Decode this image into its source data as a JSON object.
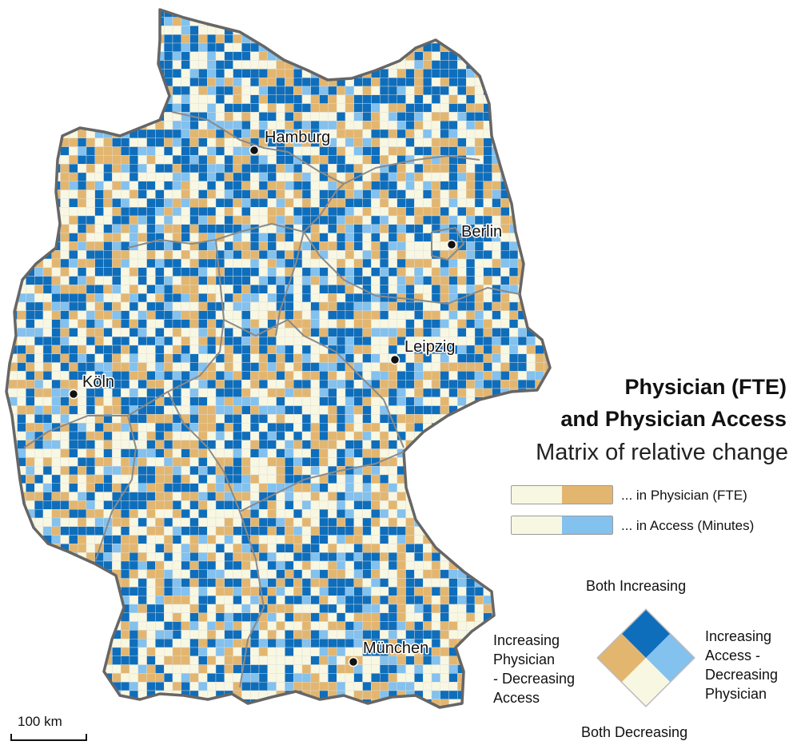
{
  "colors": {
    "both_decreasing": "#f8f7e2",
    "increasing_physician": "#e3b670",
    "increasing_access": "#83c1ee",
    "both_increasing": "#0e6ebb",
    "border": "#666666",
    "grid": "#dcdcdc"
  },
  "cities": [
    {
      "name": "Hamburg"
    },
    {
      "name": "Berlin"
    },
    {
      "name": "Leipzig"
    },
    {
      "name": "Köln"
    },
    {
      "name": "München"
    }
  ],
  "legend": {
    "title_line1": "Physician (FTE)",
    "title_line2": "and Physician Access",
    "subtitle": "Matrix of relative change",
    "bar_physician_label": "... in Physician (FTE)",
    "bar_access_label": "... in Access (Minutes)",
    "top_label": "Both Increasing",
    "bottom_label": "Both Decreasing",
    "left_label_lines": [
      "Increasing",
      "Physician",
      "- Decreasing",
      "Access"
    ],
    "right_label_lines": [
      "Increasing",
      "Access -",
      "Decreasing",
      "Physician"
    ]
  },
  "scale_bar": {
    "label": "100 km"
  }
}
